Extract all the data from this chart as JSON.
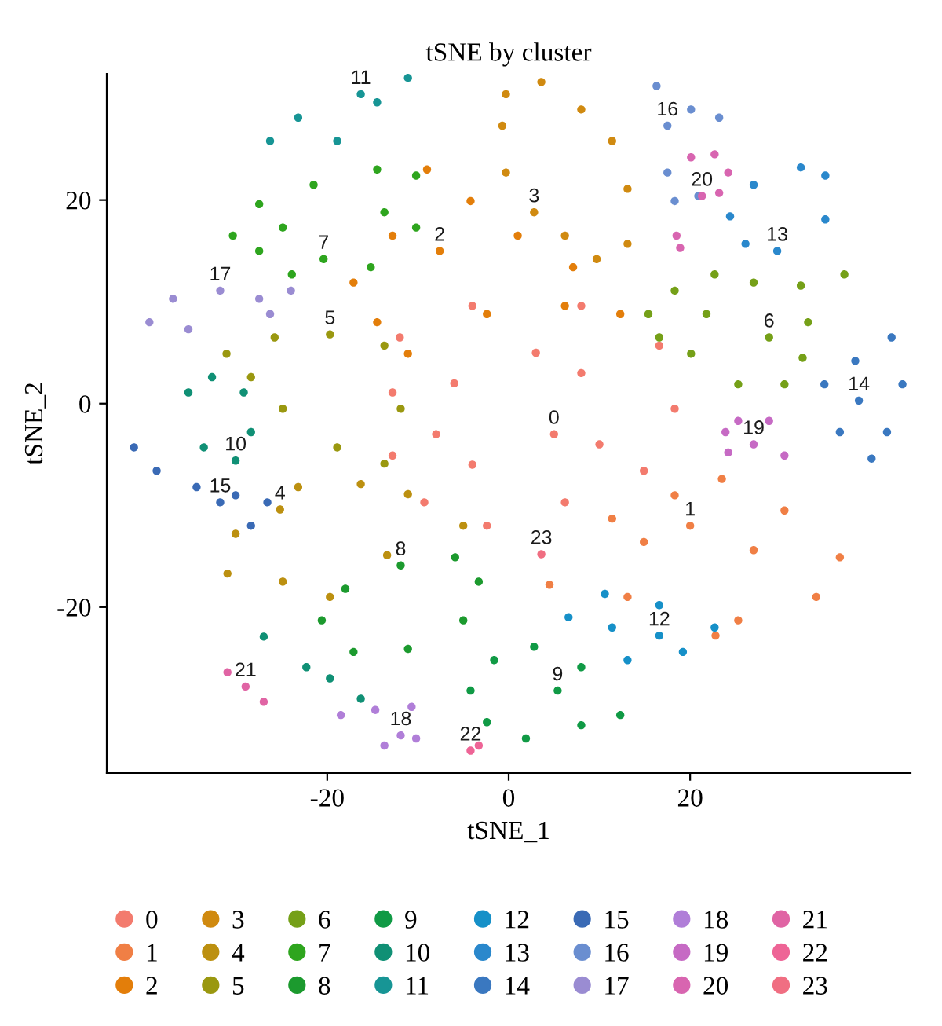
{
  "chart_data": {
    "type": "scatter",
    "title": "tSNE by cluster",
    "xlabel": "tSNE_1",
    "ylabel": "tSNE_2",
    "xlim": [
      -44.3,
      44.3
    ],
    "ylim": [
      -36.3,
      32.4
    ],
    "xticks": [
      -20,
      0,
      20
    ],
    "yticks": [
      -20,
      0,
      20
    ],
    "grid": false,
    "legend": "bottom",
    "marker": "circle",
    "series": [
      {
        "name": "0",
        "color": "#f37b6e",
        "x": [
          -12,
          -4,
          8,
          16.6,
          18.3,
          14.9,
          6.2,
          -2.4,
          -9.3,
          -12.8,
          -12.8,
          5,
          -6,
          8,
          -4,
          3,
          10,
          -8
        ],
        "values": [
          6.5,
          9.6,
          9.6,
          5.7,
          -0.5,
          -6.6,
          -9.7,
          -12,
          -9.7,
          -5.1,
          1.1,
          -3,
          2,
          3,
          -6,
          5,
          -4,
          -3
        ]
      },
      {
        "name": "1",
        "color": "#f07f45",
        "x": [
          4.5,
          11.4,
          18.3,
          23.5,
          30.4,
          36.5,
          33.9,
          25.3,
          22.8,
          13.1,
          14.9,
          27,
          20
        ],
        "values": [
          -17.8,
          -11.3,
          -9,
          -7.4,
          -10.5,
          -15.1,
          -19,
          -21.3,
          -22.8,
          -19,
          -13.6,
          -14.4,
          -12
        ]
      },
      {
        "name": "2",
        "color": "#e37e0a",
        "x": [
          -9,
          -4.2,
          1,
          7.1,
          12.3,
          6.2,
          -2.4,
          -11.1,
          -14.5,
          -17.1,
          -12.8,
          -7.6
        ],
        "values": [
          23,
          19.9,
          16.5,
          13.4,
          8.8,
          9.6,
          8.8,
          4.9,
          8,
          11.9,
          16.5,
          15
        ]
      },
      {
        "name": "3",
        "color": "#d08a10",
        "x": [
          -0.3,
          3.6,
          8,
          11.4,
          13.1,
          13.1,
          9.7,
          6.2,
          2.8,
          -0.3,
          -0.7
        ],
        "values": [
          30.4,
          31.6,
          28.9,
          25.8,
          21.1,
          15.7,
          14.2,
          16.5,
          18.8,
          22.7,
          27.3
        ]
      },
      {
        "name": "4",
        "color": "#bc9010",
        "x": [
          -25.2,
          -23.2,
          -16.3,
          -11.1,
          -5,
          -13.4,
          -19.7,
          -24.9,
          -31,
          -30.1
        ],
        "values": [
          -10.4,
          -8.2,
          -7.9,
          -8.9,
          -12,
          -14.9,
          -19,
          -17.5,
          -16.7,
          -12.8
        ]
      },
      {
        "name": "5",
        "color": "#9a9810",
        "x": [
          -31.1,
          -25.8,
          -19.7,
          -13.7,
          -11.9,
          -13.7,
          -18.9,
          -24.9,
          -28.4
        ],
        "values": [
          4.9,
          6.5,
          6.8,
          5.7,
          -0.5,
          -5.9,
          -4.3,
          -0.5,
          2.6
        ]
      },
      {
        "name": "6",
        "color": "#75a018",
        "x": [
          15.4,
          18.3,
          22.7,
          27,
          32.2,
          37,
          33,
          32.4,
          30.4,
          25.3,
          20.1,
          16.6,
          21.8,
          28.7
        ],
        "values": [
          8.8,
          11.1,
          12.7,
          11.9,
          11.6,
          12.7,
          8,
          4.5,
          1.9,
          1.9,
          4.9,
          6.5,
          8.8,
          6.5
        ]
      },
      {
        "name": "7",
        "color": "#2ea51e",
        "x": [
          -30.4,
          -27.5,
          -21.5,
          -14.5,
          -10.2,
          -10.2,
          -15.2,
          -20.4,
          -23.9,
          -27.5,
          -24.9,
          -13.7
        ],
        "values": [
          16.5,
          19.6,
          21.5,
          23,
          22.4,
          17.3,
          13.4,
          14.2,
          12.7,
          15,
          17.3,
          18.8
        ]
      },
      {
        "name": "8",
        "color": "#1c9a2e",
        "x": [
          -20.6,
          -18,
          -11.9,
          -5.9,
          -3.3,
          -5,
          -11.1,
          -17.1
        ],
        "values": [
          -21.3,
          -18.2,
          -15.9,
          -15.1,
          -17.5,
          -21.3,
          -24.1,
          -24.4
        ]
      },
      {
        "name": "9",
        "color": "#109a45",
        "x": [
          -4.2,
          -1.6,
          2.8,
          8,
          12.3,
          8,
          1.9,
          -2.4,
          5.4
        ],
        "values": [
          -28.2,
          -25.2,
          -23.9,
          -25.9,
          -30.6,
          -31.6,
          -32.9,
          -31.3,
          -28.2
        ]
      },
      {
        "name": "10",
        "color": "#109075",
        "x": [
          -35.3,
          -32.7,
          -29.2,
          -28.4,
          -30.1,
          -33.6,
          -27,
          -22.3,
          -19.7,
          -16.3
        ],
        "values": [
          1.1,
          2.6,
          1.1,
          -2.8,
          -5.6,
          -4.3,
          -22.9,
          -25.9,
          -27,
          -29
        ]
      },
      {
        "name": "11",
        "color": "#179595",
        "x": [
          -26.3,
          -23.2,
          -16.3,
          -11.1,
          -14.5,
          -18.9
        ],
        "values": [
          25.8,
          28.1,
          30.4,
          32,
          29.6,
          25.8
        ]
      },
      {
        "name": "12",
        "color": "#1690c8",
        "x": [
          6.6,
          10.6,
          16.6,
          22.7,
          19.2,
          13.1,
          11.4,
          16.6
        ],
        "values": [
          -21,
          -18.7,
          -19.8,
          -22,
          -24.4,
          -25.2,
          -22,
          -22.8
        ]
      },
      {
        "name": "13",
        "color": "#2a88cc",
        "x": [
          24.4,
          27,
          32.2,
          34.9,
          34.9,
          29.6,
          26.1
        ],
        "values": [
          18.4,
          21.5,
          23.2,
          22.4,
          18.1,
          15,
          15.7
        ]
      },
      {
        "name": "14",
        "color": "#3a78c0",
        "x": [
          34.8,
          38.2,
          42.2,
          43.4,
          41.7,
          40,
          36.5,
          38.6
        ],
        "values": [
          1.9,
          4.2,
          6.5,
          1.9,
          -2.8,
          -5.4,
          -2.8,
          0.3
        ]
      },
      {
        "name": "15",
        "color": "#3a6ab5",
        "x": [
          -41.3,
          -38.8,
          -34.4,
          -30.1,
          -26.6,
          -28.4,
          -31.8
        ],
        "values": [
          -4.3,
          -6.6,
          -8.2,
          -9,
          -9.7,
          -12,
          -9.7
        ]
      },
      {
        "name": "16",
        "color": "#6a8ed0",
        "x": [
          17.5,
          20.1,
          23.2,
          17.5,
          18.3,
          20.9,
          16.3
        ],
        "values": [
          27.3,
          28.9,
          28.1,
          22.7,
          19.9,
          20.4,
          31.2
        ]
      },
      {
        "name": "17",
        "color": "#9a8cd2",
        "x": [
          -39.6,
          -37,
          -31.8,
          -27.5,
          -24,
          -26.3,
          -35.3
        ],
        "values": [
          8,
          10.3,
          11.1,
          10.3,
          11.1,
          8.8,
          7.3
        ]
      },
      {
        "name": "18",
        "color": "#b07ed8",
        "x": [
          -18.5,
          -14.7,
          -10.7,
          -10.2,
          -13.7,
          -11.9
        ],
        "values": [
          -30.6,
          -30.1,
          -29.8,
          -32.9,
          -33.6,
          -32.6
        ]
      },
      {
        "name": "19",
        "color": "#c66ac4",
        "x": [
          23.9,
          25.3,
          28.7,
          30.4,
          27,
          24.2
        ],
        "values": [
          -2.8,
          -1.7,
          -1.7,
          -5.1,
          -4,
          -4.8
        ]
      },
      {
        "name": "20",
        "color": "#d865b0",
        "x": [
          20.1,
          22.7,
          24.2,
          23.2,
          21.3,
          18.5,
          18.9
        ],
        "values": [
          24.2,
          24.5,
          22.7,
          20.7,
          20.4,
          16.5,
          15.3
        ]
      },
      {
        "name": "21",
        "color": "#e064a4",
        "x": [
          -31,
          -29,
          -27
        ],
        "values": [
          -26.4,
          -27.8,
          -29.3
        ]
      },
      {
        "name": "22",
        "color": "#ee6496",
        "x": [
          -4.2,
          -3.3
        ],
        "values": [
          -34.1,
          -33.6
        ]
      },
      {
        "name": "23",
        "color": "#f06e82",
        "x": [
          3.6
        ],
        "values": [
          -14.8
        ]
      }
    ]
  }
}
